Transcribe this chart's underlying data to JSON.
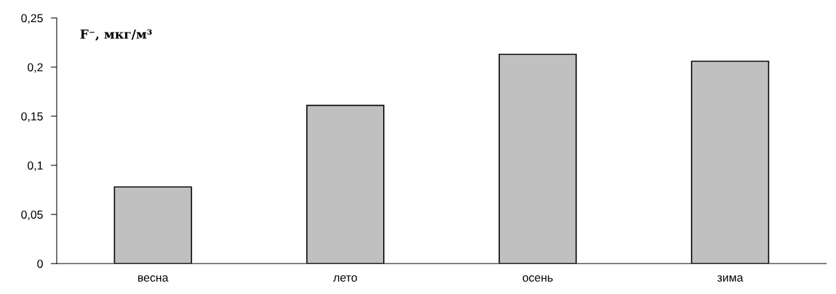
{
  "chart_data": {
    "type": "bar",
    "ylabel": "F⁻, мкг/м³",
    "categories": [
      "весна",
      "лето",
      "осень",
      "зима"
    ],
    "values": [
      0.078,
      0.161,
      0.213,
      0.206
    ],
    "color": "#c0c0c0",
    "ylim": [
      0,
      0.25
    ],
    "yticks": [
      0,
      {
        "value": 0.05,
        "label": "0,05"
      },
      {
        "value": 0.1,
        "label": "0,1"
      },
      {
        "value": 0.15,
        "label": "0,15"
      },
      {
        "value": 0.2,
        "label": "0,2"
      },
      {
        "value": 0.25,
        "label": "0,25"
      }
    ],
    "grid": false
  }
}
